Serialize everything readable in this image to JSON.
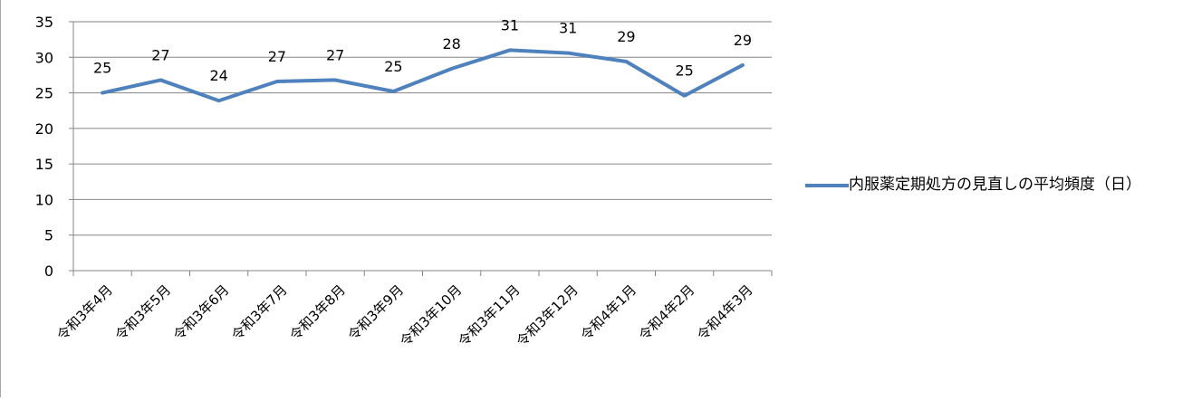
{
  "chart_data": {
    "type": "line",
    "categories": [
      "令和3年4月",
      "令和3年5月",
      "令和3年6月",
      "令和3年7月",
      "令和3年8月",
      "令和3年9月",
      "令和3年10月",
      "令和3年11月",
      "令和3年12月",
      "令和4年1月",
      "令和4年2月",
      "令和4年3月"
    ],
    "series": [
      {
        "name": "内服薬定期処方の見直しの平均頻度（日）",
        "values": [
          25,
          26.8,
          23.9,
          26.6,
          26.8,
          25.2,
          28.4,
          31,
          30.6,
          29.4,
          24.6,
          28.9
        ],
        "data_labels": [
          "25",
          "27",
          "24",
          "27",
          "27",
          "25",
          "28",
          "31",
          "31",
          "29",
          "25",
          "29"
        ],
        "color": "#4f81bd"
      }
    ],
    "ylim": [
      0,
      35
    ],
    "yticks": [
      0,
      5,
      10,
      15,
      20,
      25,
      30,
      35
    ],
    "grid": "horizontal",
    "legend": "right"
  }
}
